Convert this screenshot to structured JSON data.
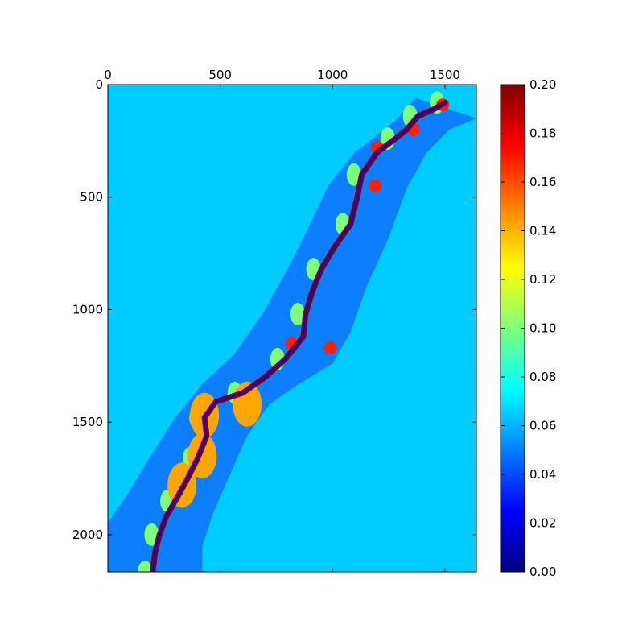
{
  "chart_data": {
    "type": "heatmap",
    "title": "",
    "xlabel": "",
    "ylabel": "",
    "x_axis_position": "top",
    "xlim": [
      0,
      1640
    ],
    "ylim": [
      2165,
      0
    ],
    "x_ticks": [
      0,
      500,
      1000,
      1500
    ],
    "x_tick_labels": [
      "0",
      "500",
      "1000",
      "1500"
    ],
    "y_ticks": [
      0,
      500,
      1000,
      1500,
      2000
    ],
    "y_tick_labels": [
      "0",
      "500",
      "1000",
      "1500",
      "2000"
    ],
    "colormap": "jet",
    "colorbar": {
      "vmin": 0.0,
      "vmax": 0.2,
      "ticks": [
        0.0,
        0.02,
        0.04,
        0.06,
        0.08,
        0.1,
        0.12,
        0.14,
        0.16,
        0.18,
        0.2
      ],
      "tick_labels": [
        "0.00",
        "0.02",
        "0.04",
        "0.06",
        "0.08",
        "0.10",
        "0.12",
        "0.14",
        "0.16",
        "0.18",
        "0.20"
      ]
    },
    "grid": false,
    "levels_present": [
      {
        "value": 0.065,
        "color": "#00ccff",
        "description": "background"
      },
      {
        "value": 0.045,
        "color": "#0b7fff",
        "description": "floodplain band"
      },
      {
        "value": 0.095,
        "color": "#7dff7a",
        "description": "bank patches"
      },
      {
        "value": 0.145,
        "color": "#ffa500",
        "description": "side patches"
      },
      {
        "value": 0.18,
        "color": "#ff2000",
        "description": "patches"
      },
      {
        "value": 0.2,
        "color": "#800000",
        "description": "river channel"
      },
      {
        "value": 0.02,
        "color": "#0000ff",
        "description": "channel interior"
      }
    ],
    "channel_centerline": [
      [
        1500,
        80
      ],
      [
        1450,
        110
      ],
      [
        1380,
        140
      ],
      [
        1330,
        200
      ],
      [
        1280,
        240
      ],
      [
        1200,
        300
      ],
      [
        1130,
        400
      ],
      [
        1110,
        500
      ],
      [
        1080,
        620
      ],
      [
        1010,
        720
      ],
      [
        950,
        820
      ],
      [
        910,
        920
      ],
      [
        880,
        1020
      ],
      [
        870,
        1120
      ],
      [
        790,
        1220
      ],
      [
        700,
        1300
      ],
      [
        600,
        1370
      ],
      [
        480,
        1410
      ],
      [
        430,
        1480
      ],
      [
        440,
        1560
      ],
      [
        400,
        1660
      ],
      [
        350,
        1760
      ],
      [
        300,
        1850
      ],
      [
        260,
        1920
      ],
      [
        230,
        2000
      ],
      [
        210,
        2080
      ],
      [
        200,
        2165
      ]
    ],
    "floodplain_left": [
      [
        1370,
        60
      ],
      [
        1280,
        160
      ],
      [
        1100,
        300
      ],
      [
        980,
        450
      ],
      [
        900,
        620
      ],
      [
        810,
        800
      ],
      [
        700,
        1000
      ],
      [
        560,
        1200
      ],
      [
        420,
        1330
      ],
      [
        300,
        1480
      ],
      [
        190,
        1650
      ],
      [
        100,
        1800
      ],
      [
        0,
        1950
      ],
      [
        0,
        2165
      ]
    ],
    "floodplain_right": [
      [
        1640,
        150
      ],
      [
        1520,
        200
      ],
      [
        1420,
        300
      ],
      [
        1330,
        460
      ],
      [
        1250,
        680
      ],
      [
        1150,
        900
      ],
      [
        1080,
        1100
      ],
      [
        1000,
        1240
      ],
      [
        850,
        1330
      ],
      [
        720,
        1420
      ],
      [
        620,
        1560
      ],
      [
        540,
        1740
      ],
      [
        470,
        1900
      ],
      [
        420,
        2050
      ],
      [
        420,
        2165
      ]
    ]
  }
}
